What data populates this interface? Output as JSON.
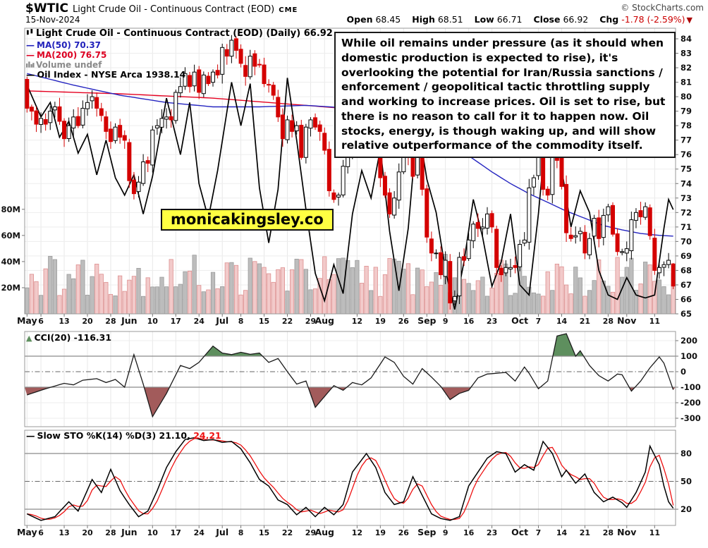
{
  "header": {
    "symbol": "$WTIC",
    "title": "Light Crude Oil - Continuous Contract (EOD)",
    "exchange": "CME",
    "copyright": "© StockCharts.com",
    "date": "15-Nov-2024",
    "quote": {
      "open_label": "Open",
      "open": "68.45",
      "high_label": "High",
      "high": "68.51",
      "low_label": "Low",
      "low": "66.71",
      "close_label": "Close",
      "close": "66.92",
      "chg_label": "Chg",
      "chg": "-1.78 (-2.59%)"
    }
  },
  "legend": {
    "main": "Light Crude Oil - Continuous Contract (EOD) (Daily) 66.92",
    "ma50": "MA(50) 70.37",
    "ma200": "MA(200) 76.75",
    "volume": "Volume undef",
    "oil_index": "Oil Index - NYSE Arca 1938.14",
    "cci": "CCI(20) -116.31",
    "sto": "Slow STO %K(14) %D(3) 21.10,",
    "sto_d": "24.21"
  },
  "annotation": {
    "text": "While oil remains under pressure (as it should when domestic production is expected to rise), it's overlooking the potential for Iran/Russia sanctions / enforcement / geopolitical tactic throttling supply and working to increase prices. Oil is set to rise, but there is no reason to call for it to happen now. Oil stocks, energy, is though waking up, and will show relative outperformance of the commodity itself."
  },
  "watermark": "monicakingsley.co",
  "colors": {
    "candle_down": "#d40000",
    "candle_up": "#ffffff",
    "candle_stroke": "#000000",
    "ma50": "#2424c0",
    "ma200": "#e50020",
    "oil_index": "#000000",
    "vol_up_fill": "#bdbdbd",
    "vol_up_stroke": "#9a9a9a",
    "vol_dn_fill": "#f2caca",
    "vol_dn_stroke": "#dd8f8f",
    "cci_pos_fill": "#5e8f5e",
    "cci_neg_fill": "#a25b5b",
    "sto_k": "#000000",
    "sto_d": "#ee1111",
    "grid": "#e8e8e8",
    "frame": "#999999",
    "thresh": "#8a8a8a",
    "watermark_bg": "#ffff42",
    "chg_red": "#cc0000"
  },
  "axes": {
    "price_ticks": [
      84,
      83,
      82,
      81,
      80,
      79,
      78,
      77,
      76,
      75,
      74,
      73,
      72,
      71,
      70,
      69,
      68,
      67,
      66,
      65
    ],
    "volume_ticks": [
      {
        "l": "80M",
        "v": 80
      },
      {
        "l": "60M",
        "v": 60
      },
      {
        "l": "40M",
        "v": 40
      },
      {
        "l": "20M",
        "v": 20
      }
    ],
    "cci_ticks": [
      200,
      100,
      0,
      -100,
      -200,
      -300
    ],
    "sto_ticks": [
      80,
      50,
      20
    ],
    "x_ticks": [
      {
        "l": "May",
        "i": 0,
        "m": true
      },
      {
        "l": "6",
        "i": 3
      },
      {
        "l": "13",
        "i": 8
      },
      {
        "l": "20",
        "i": 13
      },
      {
        "l": "28",
        "i": 18
      },
      {
        "l": "Jun",
        "i": 22,
        "m": true
      },
      {
        "l": "10",
        "i": 27
      },
      {
        "l": "17",
        "i": 32
      },
      {
        "l": "24",
        "i": 37
      },
      {
        "l": "Jul",
        "i": 42,
        "m": true
      },
      {
        "l": "8",
        "i": 46
      },
      {
        "l": "15",
        "i": 51
      },
      {
        "l": "22",
        "i": 56
      },
      {
        "l": "29",
        "i": 61
      },
      {
        "l": "Aug",
        "i": 64,
        "m": true
      },
      {
        "l": "12",
        "i": 71
      },
      {
        "l": "19",
        "i": 76
      },
      {
        "l": "26",
        "i": 81
      },
      {
        "l": "Sep",
        "i": 86,
        "m": true
      },
      {
        "l": "9",
        "i": 90
      },
      {
        "l": "16",
        "i": 95
      },
      {
        "l": "23",
        "i": 100
      },
      {
        "l": "Oct",
        "i": 106,
        "m": true
      },
      {
        "l": "7",
        "i": 110
      },
      {
        "l": "14",
        "i": 115
      },
      {
        "l": "21",
        "i": 120
      },
      {
        "l": "28",
        "i": 125
      },
      {
        "l": "Nov",
        "i": 129,
        "m": true
      },
      {
        "l": "11",
        "i": 135
      }
    ]
  },
  "chart_data": {
    "type": "candlestick",
    "x_range": "May 2024 - 15 Nov 2024 (daily)",
    "price_axis": [
      65,
      84
    ],
    "cci_axis": [
      -300,
      200
    ],
    "sto_axis": [
      0,
      100
    ],
    "days": 140,
    "closes": [
      79.2,
      79.0,
      78.1,
      78.5,
      78.1,
      79.0,
      79.3,
      78.3,
      77.1,
      78.0,
      78.6,
      78.0,
      79.2,
      79.6,
      80.0,
      79.2,
      78.7,
      77.6,
      76.9,
      77.9,
      77.2,
      76.99,
      74.2,
      73.3,
      74.1,
      75.5,
      75.4,
      77.7,
      78.0,
      78.5,
      78.6,
      78.4,
      80.3,
      80.7,
      81.6,
      80.7,
      81.7,
      80.3,
      81.5,
      80.9,
      81.7,
      81.5,
      83.4,
      82.8,
      83.9,
      83.2,
      82.3,
      81.4,
      82.8,
      82.1,
      82.2,
      80.9,
      80.8,
      80.1,
      78.6,
      77.1,
      78.4,
      77.6,
      78.0,
      75.8,
      77.9,
      78.4,
      77.9,
      77.6,
      76.3,
      73.5,
      72.9,
      73.2,
      75.2,
      76.2,
      76.8,
      80.1,
      78.4,
      77.1,
      78.2,
      76.7,
      74.4,
      73.2,
      71.9,
      73.0,
      74.8,
      77.4,
      75.9,
      74.5,
      75.9,
      73.6,
      70.3,
      69.2,
      69.2,
      67.7,
      68.7,
      65.75,
      66.2,
      68.9,
      68.7,
      70.1,
      71.2,
      70.9,
      71.0,
      71.9,
      71.0,
      68.2,
      67.7,
      68.2,
      68.2,
      68.2,
      69.8,
      70.1,
      73.7,
      74.4,
      77.1,
      73.6,
      73.2,
      75.9,
      75.6,
      73.8,
      70.6,
      70.2,
      70.4,
      70.7,
      69.2,
      70.2,
      71.6,
      70.2,
      71.8,
      72.4,
      70.5,
      69.3,
      69.3,
      69.5,
      71.5,
      72.0,
      71.7,
      72.4,
      70.4,
      68.0,
      68.2,
      68.4,
      68.7,
      66.92
    ],
    "last_ohlc": [
      68.45,
      68.51,
      66.71,
      66.92
    ],
    "first_open": 81.2,
    "ma50_anchors": [
      [
        0,
        81.6
      ],
      [
        10,
        80.8
      ],
      [
        20,
        80.1
      ],
      [
        30,
        79.6
      ],
      [
        40,
        79.3
      ],
      [
        50,
        79.3
      ],
      [
        60,
        79.4
      ],
      [
        70,
        79.2
      ],
      [
        78,
        78.8
      ],
      [
        84,
        78.2
      ],
      [
        88,
        77.5
      ],
      [
        92,
        76.6
      ],
      [
        96,
        75.7
      ],
      [
        100,
        74.8
      ],
      [
        104,
        74.0
      ],
      [
        108,
        73.3
      ],
      [
        112,
        72.7
      ],
      [
        116,
        72.1
      ],
      [
        120,
        71.6
      ],
      [
        124,
        71.1
      ],
      [
        128,
        70.8
      ],
      [
        132,
        70.55
      ],
      [
        136,
        70.42
      ],
      [
        139,
        70.37
      ]
    ],
    "ma200_anchors": [
      [
        0,
        80.4
      ],
      [
        20,
        80.2
      ],
      [
        40,
        79.9
      ],
      [
        60,
        79.4
      ],
      [
        80,
        78.9
      ],
      [
        90,
        78.5
      ],
      [
        100,
        78.1
      ],
      [
        110,
        77.7
      ],
      [
        120,
        77.3
      ],
      [
        130,
        76.95
      ],
      [
        139,
        76.75
      ]
    ],
    "oil_index_anchors": [
      [
        0,
        80.8
      ],
      [
        3,
        78.6
      ],
      [
        5,
        79.6
      ],
      [
        7,
        77.2
      ],
      [
        9,
        78.3
      ],
      [
        11,
        76.1
      ],
      [
        13,
        77.4
      ],
      [
        15,
        74.6
      ],
      [
        17,
        77.0
      ],
      [
        19,
        74.4
      ],
      [
        21,
        73.2
      ],
      [
        23,
        74.6
      ],
      [
        25,
        71.9
      ],
      [
        27,
        74.5
      ],
      [
        30,
        79.9
      ],
      [
        33,
        76.0
      ],
      [
        35,
        79.6
      ],
      [
        37,
        74.0
      ],
      [
        39,
        71.6
      ],
      [
        41,
        74.9
      ],
      [
        44,
        81.0
      ],
      [
        46,
        78.0
      ],
      [
        48,
        80.9
      ],
      [
        50,
        73.7
      ],
      [
        52,
        69.9
      ],
      [
        54,
        73.6
      ],
      [
        56,
        81.3
      ],
      [
        58,
        77.0
      ],
      [
        60,
        72.2
      ],
      [
        62,
        67.8
      ],
      [
        64,
        65.9
      ],
      [
        66,
        68.4
      ],
      [
        68,
        66.4
      ],
      [
        70,
        71.9
      ],
      [
        72,
        74.9
      ],
      [
        74,
        73.0
      ],
      [
        76,
        76.4
      ],
      [
        78,
        70.7
      ],
      [
        80,
        66.6
      ],
      [
        82,
        70.9
      ],
      [
        84,
        78.3
      ],
      [
        86,
        74.3
      ],
      [
        88,
        72.0
      ],
      [
        90,
        68.0
      ],
      [
        92,
        65.3
      ],
      [
        94,
        68.6
      ],
      [
        96,
        72.9
      ],
      [
        98,
        70.3
      ],
      [
        100,
        66.9
      ],
      [
        102,
        68.6
      ],
      [
        104,
        71.9
      ],
      [
        106,
        67.0
      ],
      [
        108,
        66.3
      ],
      [
        110,
        71.9
      ],
      [
        112,
        78.9
      ],
      [
        113,
        79.4
      ],
      [
        115,
        75.0
      ],
      [
        117,
        71.0
      ],
      [
        119,
        73.5
      ],
      [
        121,
        72.0
      ],
      [
        123,
        68.0
      ],
      [
        125,
        66.3
      ],
      [
        127,
        66.0
      ],
      [
        129,
        67.5
      ],
      [
        131,
        66.3
      ],
      [
        133,
        66.1
      ],
      [
        135,
        66.3
      ],
      [
        137,
        70.9
      ],
      [
        138,
        72.9
      ],
      [
        139,
        72.2
      ]
    ],
    "cci_anchors": [
      [
        0,
        -150
      ],
      [
        4,
        -110
      ],
      [
        8,
        -75
      ],
      [
        10,
        -85
      ],
      [
        12,
        -55
      ],
      [
        15,
        -45
      ],
      [
        17,
        -70
      ],
      [
        19,
        -50
      ],
      [
        21,
        -100
      ],
      [
        23,
        110
      ],
      [
        25,
        -80
      ],
      [
        27,
        -290
      ],
      [
        30,
        -140
      ],
      [
        33,
        40
      ],
      [
        35,
        20
      ],
      [
        37,
        60
      ],
      [
        40,
        165
      ],
      [
        42,
        120
      ],
      [
        44,
        110
      ],
      [
        46,
        125
      ],
      [
        48,
        112
      ],
      [
        50,
        120
      ],
      [
        52,
        60
      ],
      [
        54,
        85
      ],
      [
        56,
        0
      ],
      [
        58,
        -80
      ],
      [
        60,
        -60
      ],
      [
        62,
        -230
      ],
      [
        64,
        -160
      ],
      [
        66,
        -90
      ],
      [
        68,
        -120
      ],
      [
        70,
        -70
      ],
      [
        72,
        -85
      ],
      [
        74,
        -40
      ],
      [
        77,
        95
      ],
      [
        79,
        60
      ],
      [
        81,
        -30
      ],
      [
        83,
        -80
      ],
      [
        85,
        20
      ],
      [
        87,
        -35
      ],
      [
        89,
        -95
      ],
      [
        91,
        -180
      ],
      [
        93,
        -140
      ],
      [
        95,
        -120
      ],
      [
        97,
        -40
      ],
      [
        99,
        -15
      ],
      [
        101,
        -10
      ],
      [
        103,
        -5
      ],
      [
        105,
        -60
      ],
      [
        107,
        30
      ],
      [
        108,
        -10
      ],
      [
        110,
        -110
      ],
      [
        112,
        -60
      ],
      [
        114,
        230
      ],
      [
        116,
        245
      ],
      [
        118,
        100
      ],
      [
        119,
        135
      ],
      [
        121,
        40
      ],
      [
        123,
        -25
      ],
      [
        125,
        -60
      ],
      [
        127,
        -15
      ],
      [
        128,
        -20
      ],
      [
        130,
        -125
      ],
      [
        132,
        -60
      ],
      [
        134,
        25
      ],
      [
        136,
        95
      ],
      [
        137,
        55
      ],
      [
        139,
        -116.31
      ]
    ],
    "sto_k_anchors": [
      [
        0,
        15
      ],
      [
        3,
        8
      ],
      [
        6,
        12
      ],
      [
        9,
        28
      ],
      [
        11,
        18
      ],
      [
        14,
        52
      ],
      [
        16,
        38
      ],
      [
        18,
        63
      ],
      [
        20,
        40
      ],
      [
        22,
        25
      ],
      [
        24,
        12
      ],
      [
        26,
        18
      ],
      [
        28,
        40
      ],
      [
        30,
        65
      ],
      [
        32,
        82
      ],
      [
        34,
        95
      ],
      [
        36,
        97
      ],
      [
        38,
        94
      ],
      [
        40,
        95
      ],
      [
        42,
        92
      ],
      [
        44,
        93
      ],
      [
        46,
        85
      ],
      [
        48,
        70
      ],
      [
        50,
        52
      ],
      [
        52,
        45
      ],
      [
        54,
        30
      ],
      [
        56,
        25
      ],
      [
        58,
        14
      ],
      [
        60,
        22
      ],
      [
        62,
        12
      ],
      [
        64,
        22
      ],
      [
        66,
        14
      ],
      [
        68,
        25
      ],
      [
        70,
        60
      ],
      [
        73,
        80
      ],
      [
        75,
        65
      ],
      [
        77,
        38
      ],
      [
        79,
        25
      ],
      [
        81,
        28
      ],
      [
        83,
        55
      ],
      [
        85,
        35
      ],
      [
        87,
        15
      ],
      [
        89,
        10
      ],
      [
        91,
        8
      ],
      [
        93,
        12
      ],
      [
        95,
        45
      ],
      [
        97,
        60
      ],
      [
        99,
        75
      ],
      [
        101,
        82
      ],
      [
        103,
        80
      ],
      [
        105,
        60
      ],
      [
        107,
        68
      ],
      [
        109,
        62
      ],
      [
        111,
        93
      ],
      [
        113,
        80
      ],
      [
        115,
        55
      ],
      [
        116,
        62
      ],
      [
        118,
        48
      ],
      [
        120,
        58
      ],
      [
        122,
        38
      ],
      [
        124,
        28
      ],
      [
        126,
        33
      ],
      [
        128,
        27
      ],
      [
        129,
        22
      ],
      [
        131,
        38
      ],
      [
        133,
        60
      ],
      [
        134,
        88
      ],
      [
        136,
        68
      ],
      [
        137,
        45
      ],
      [
        138,
        28
      ],
      [
        139,
        21.1
      ]
    ],
    "cci_last": -116.31,
    "sto_k_last": 21.1,
    "sto_d_last": 24.21,
    "volume_unit": "M",
    "volume_range": [
      13,
      46
    ]
  }
}
